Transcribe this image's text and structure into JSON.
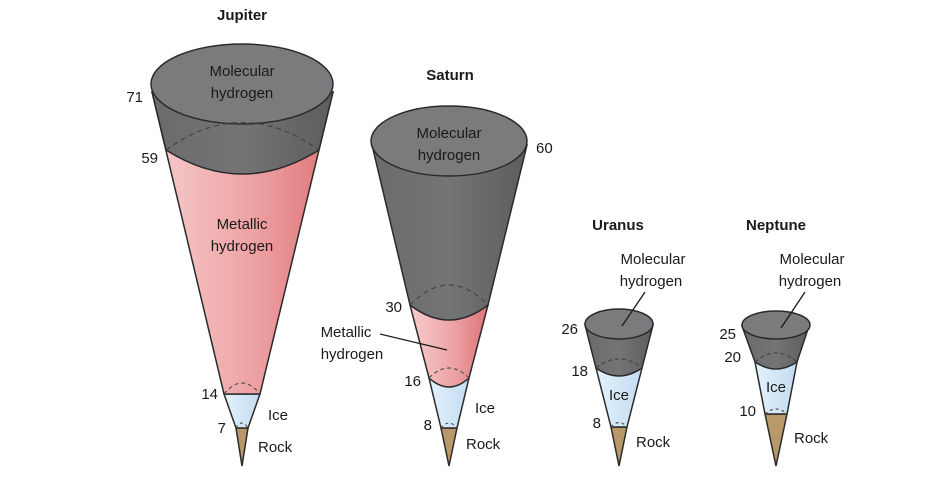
{
  "planets": [
    {
      "name": "Jupiter",
      "molecular": [
        "Molecular",
        "hydrogen"
      ],
      "metallic": [
        "Metallic",
        "hydrogen"
      ],
      "ice": "Ice",
      "rock": "Rock",
      "radii": {
        "outer": "71",
        "molecular_base": "59",
        "metallic_base": "14",
        "ice_base": "7"
      }
    },
    {
      "name": "Saturn",
      "molecular": [
        "Molecular",
        "hydrogen"
      ],
      "metallic": [
        "Metallic",
        "hydrogen"
      ],
      "ice": "Ice",
      "rock": "Rock",
      "radii": {
        "outer": "60",
        "molecular_base": "30",
        "metallic_base": "16",
        "ice_base": "8"
      }
    },
    {
      "name": "Uranus",
      "molecular": [
        "Molecular",
        "hydrogen"
      ],
      "ice": "Ice",
      "rock": "Rock",
      "radii": {
        "outer": "26",
        "molecular_base": "18",
        "ice_base": "8"
      }
    },
    {
      "name": "Neptune",
      "molecular": [
        "Molecular",
        "hydrogen"
      ],
      "ice": "Ice",
      "rock": "Rock",
      "radii": {
        "outer": "25",
        "molecular_base": "20",
        "ice_base": "10"
      }
    }
  ],
  "colors": {
    "molecular": "#6e6e70",
    "molecular_top": "#7a7a7c",
    "metallic_light": "#f4c4c4",
    "metallic_dark": "#e07d80",
    "ice": "#d3e8f8",
    "rock": "#b9996a",
    "outline": "#2a2a2a"
  }
}
